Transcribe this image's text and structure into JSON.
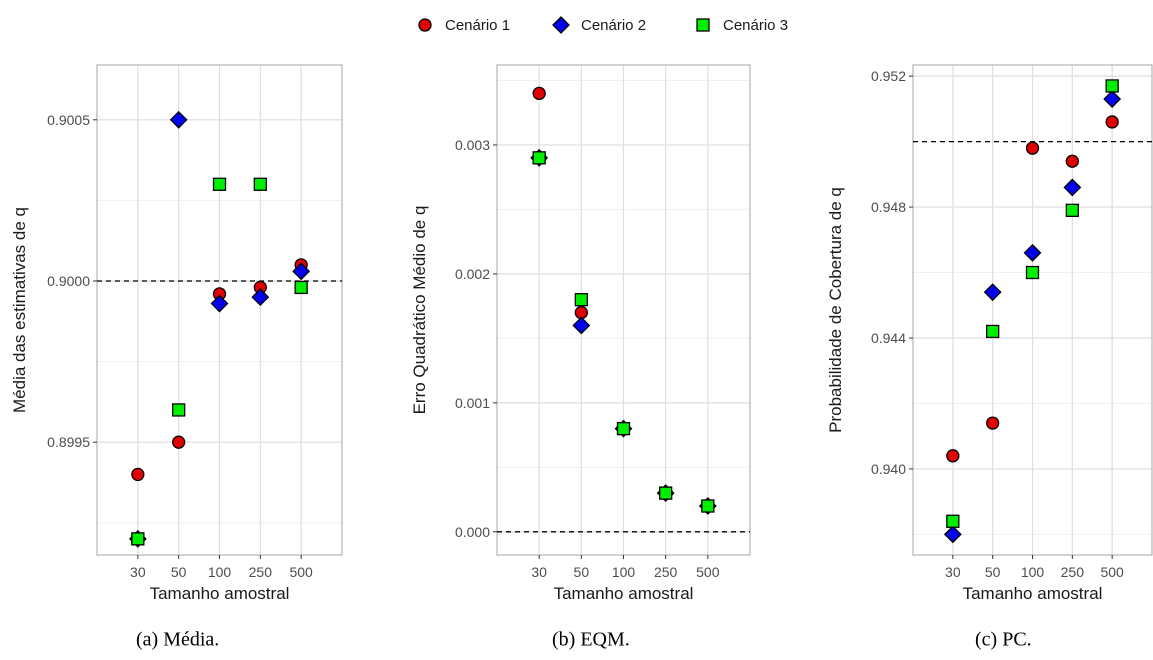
{
  "legend": [
    {
      "label": "Cenário 1",
      "shape": "circle",
      "color": "#e00000"
    },
    {
      "label": "Cenário 2",
      "shape": "diamond",
      "color": "#0000ee"
    },
    {
      "label": "Cenário 3",
      "shape": "square",
      "color": "#00ee00"
    }
  ],
  "chart_data": [
    {
      "type": "scatter",
      "caption": "(a) Média.",
      "xlabel": "Tamanho amostral",
      "ylabel": "Média das estimativas de q",
      "categories": [
        "30",
        "50",
        "100",
        "250",
        "500"
      ],
      "ylim": [
        0.89915,
        0.90067
      ],
      "yticks": [
        0.8995,
        0.9,
        0.9005
      ],
      "ytick_labels": [
        "0.8995",
        "0.9000",
        "0.9005"
      ],
      "reference_line": 0.9,
      "series": [
        {
          "name": "Cenário 1",
          "values": [
            0.8994,
            0.8995,
            0.89996,
            0.89998,
            0.90005
          ]
        },
        {
          "name": "Cenário 2",
          "values": [
            0.8992,
            0.9005,
            0.89993,
            0.89995,
            0.90003
          ]
        },
        {
          "name": "Cenário 3",
          "values": [
            0.8992,
            0.8996,
            0.9003,
            0.9003,
            0.89998
          ]
        }
      ]
    },
    {
      "type": "scatter",
      "caption": "(b) EQM.",
      "xlabel": "Tamanho amostral",
      "ylabel": "Erro Quadrático Médio de q",
      "categories": [
        "30",
        "50",
        "100",
        "250",
        "500"
      ],
      "ylim": [
        -0.00018,
        0.00362
      ],
      "yticks": [
        0,
        0.001,
        0.002,
        0.003
      ],
      "ytick_labels": [
        "0.000",
        "0.001",
        "0.002",
        "0.003"
      ],
      "reference_line": 0,
      "series": [
        {
          "name": "Cenário 1",
          "values": [
            0.0034,
            0.0017,
            0.0008,
            0.0003,
            0.0002
          ]
        },
        {
          "name": "Cenário 2",
          "values": [
            0.0029,
            0.0016,
            0.0008,
            0.0003,
            0.0002
          ]
        },
        {
          "name": "Cenário 3",
          "values": [
            0.0029,
            0.0018,
            0.0008,
            0.0003,
            0.0002
          ]
        }
      ]
    },
    {
      "type": "scatter",
      "caption": "(c) PC.",
      "xlabel": "Tamanho amostral",
      "ylabel": "Probabilidade de Cobertura de q",
      "categories": [
        "30",
        "50",
        "100",
        "250",
        "500"
      ],
      "ylim": [
        0.93737,
        0.95234
      ],
      "yticks": [
        0.94,
        0.944,
        0.948,
        0.952
      ],
      "ytick_labels": [
        "0.940",
        "0.944",
        "0.948",
        "0.952"
      ],
      "reference_line": 0.95,
      "series": [
        {
          "name": "Cenário 1",
          "values": [
            0.9404,
            0.9414,
            0.9498,
            0.9494,
            0.9506
          ]
        },
        {
          "name": "Cenário 2",
          "values": [
            0.938,
            0.9454,
            0.9466,
            0.9486,
            0.9513
          ]
        },
        {
          "name": "Cenário 3",
          "values": [
            0.9384,
            0.9442,
            0.946,
            0.9479,
            0.9517
          ]
        }
      ]
    }
  ]
}
